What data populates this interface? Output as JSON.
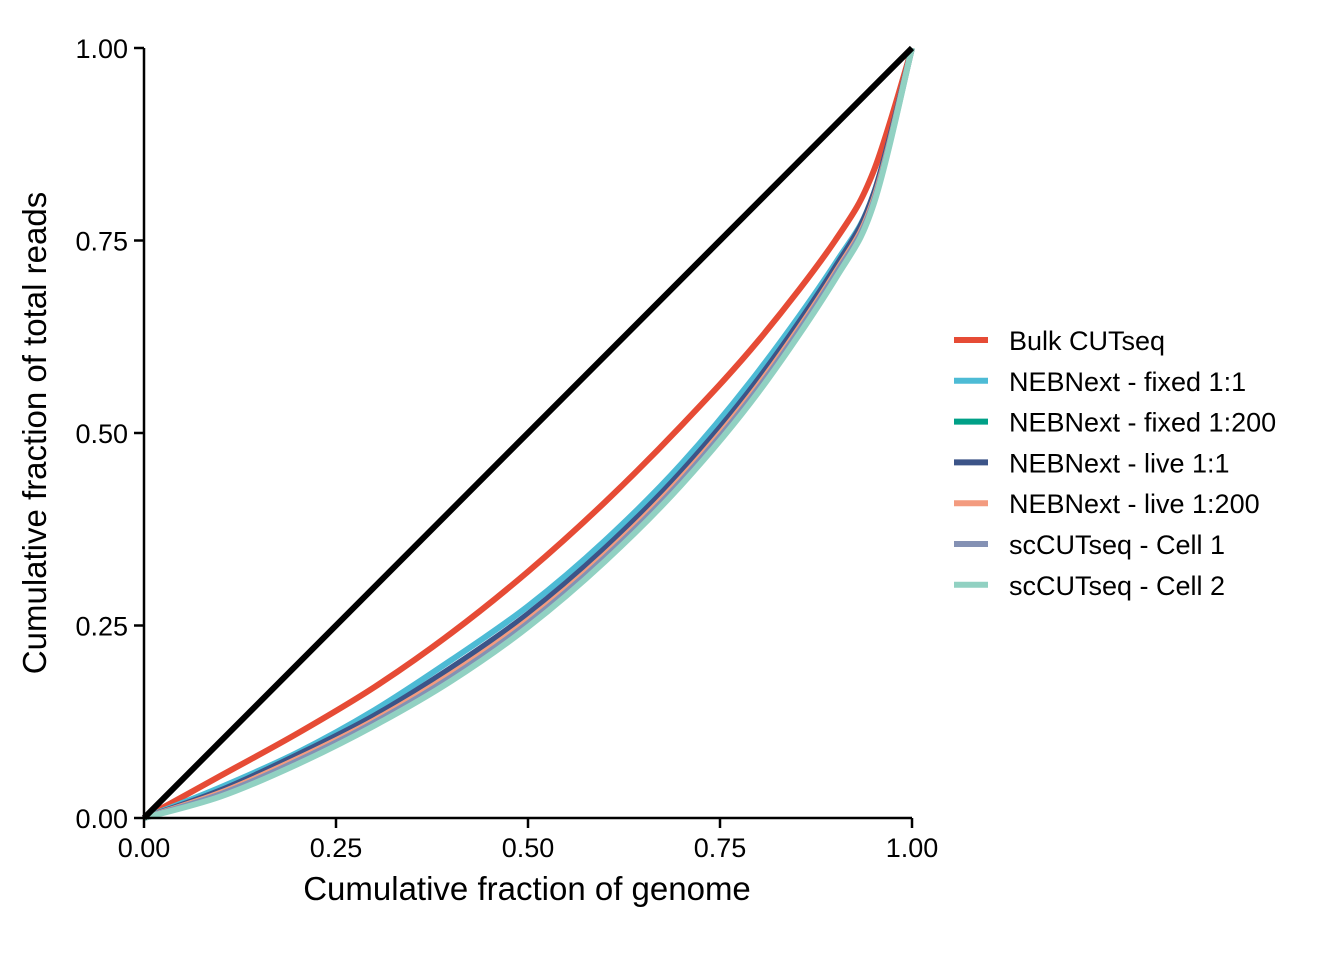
{
  "chart_data": {
    "type": "line",
    "xlabel": "Cumulative fraction of genome",
    "ylabel": "Cumulative fraction of total reads",
    "xlim": [
      0,
      1
    ],
    "ylim": [
      0,
      1
    ],
    "x_ticks": [
      "0.00",
      "0.25",
      "0.50",
      "0.75",
      "1.00"
    ],
    "y_ticks": [
      "0.00",
      "0.25",
      "0.50",
      "0.75",
      "1.00"
    ],
    "grid": false,
    "legend_position": "right",
    "reference_line": {
      "color": "#000000",
      "x": [
        0,
        1
      ],
      "y": [
        0,
        1
      ]
    },
    "x": [
      0,
      0.1,
      0.2,
      0.3,
      0.4,
      0.5,
      0.6,
      0.7,
      0.8,
      0.9,
      0.95,
      1.0
    ],
    "series": [
      {
        "name": "Bulk CUTseq",
        "color": "#E64B35",
        "values": [
          0,
          0.055,
          0.11,
          0.17,
          0.24,
          0.32,
          0.41,
          0.51,
          0.62,
          0.75,
          0.84,
          1.0
        ]
      },
      {
        "name": "NEBNext - fixed 1:1",
        "color": "#4DBBD5",
        "values": [
          0,
          0.04,
          0.085,
          0.14,
          0.205,
          0.275,
          0.36,
          0.46,
          0.58,
          0.72,
          0.81,
          1.0
        ]
      },
      {
        "name": "NEBNext - fixed 1:200",
        "color": "#00A087",
        "values": [
          0,
          0.035,
          0.08,
          0.13,
          0.19,
          0.26,
          0.345,
          0.445,
          0.565,
          0.71,
          0.805,
          1.0
        ]
      },
      {
        "name": "NEBNext - live 1:1",
        "color": "#3C5488",
        "values": [
          0,
          0.036,
          0.082,
          0.133,
          0.195,
          0.265,
          0.35,
          0.45,
          0.57,
          0.715,
          0.81,
          1.0
        ]
      },
      {
        "name": "NEBNext - live 1:200",
        "color": "#F39B7F",
        "values": [
          0,
          0.033,
          0.077,
          0.127,
          0.187,
          0.257,
          0.342,
          0.442,
          0.562,
          0.708,
          0.803,
          1.0
        ]
      },
      {
        "name": "scCUTseq - Cell 1",
        "color": "#8491B4",
        "values": [
          0,
          0.031,
          0.074,
          0.124,
          0.183,
          0.253,
          0.338,
          0.438,
          0.558,
          0.705,
          0.8,
          1.0
        ]
      },
      {
        "name": "scCUTseq - Cell 2",
        "color": "#91D1C2",
        "values": [
          0,
          0.028,
          0.07,
          0.12,
          0.178,
          0.248,
          0.333,
          0.433,
          0.553,
          0.7,
          0.797,
          1.0
        ]
      }
    ]
  }
}
